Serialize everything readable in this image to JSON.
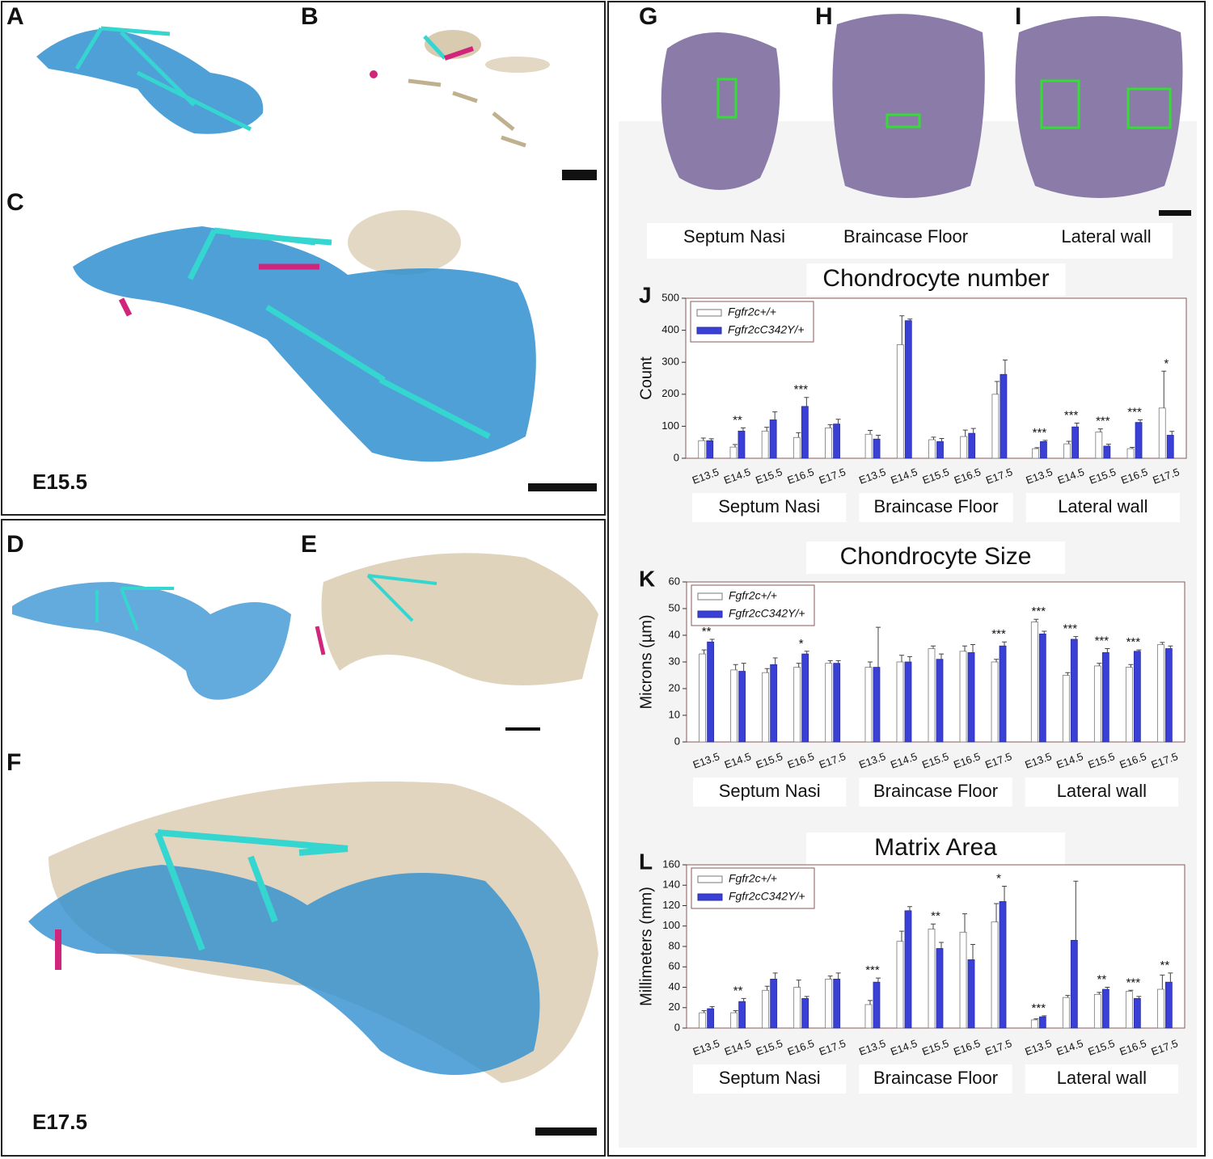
{
  "left_panels": [
    {
      "label": "A"
    },
    {
      "label": "B"
    },
    {
      "label": "C",
      "stage": "E15.5"
    },
    {
      "label": "D"
    },
    {
      "label": "E"
    },
    {
      "label": "F",
      "stage": "E17.5"
    }
  ],
  "histology": [
    {
      "label": "G",
      "caption": "Septum Nasi"
    },
    {
      "label": "H",
      "caption": "Braincase Floor"
    },
    {
      "label": "I",
      "caption": "Lateral wall"
    }
  ],
  "chart_data": [
    {
      "type": "bar",
      "panel_label": "J",
      "title": "Chondrocyte number",
      "y_label": "Count",
      "categories": [
        "E13.5",
        "E14.5",
        "E15.5",
        "E16.5",
        "E17.5",
        "E13.5",
        "E14.5",
        "E15.5",
        "E16.5",
        "E17.5",
        "E13.5",
        "E14.5",
        "E15.5",
        "E16.5",
        "E17.5"
      ],
      "groups": [
        "Septum Nasi",
        "Braincase Floor",
        "Lateral wall"
      ],
      "series": [
        {
          "name": "Fgfr2c+/+",
          "color": "#ffffff",
          "values": [
            55,
            35,
            85,
            65,
            95,
            75,
            355,
            58,
            68,
            200,
            30,
            45,
            82,
            30,
            157
          ],
          "errors": [
            8,
            8,
            12,
            15,
            10,
            12,
            90,
            8,
            20,
            40,
            3,
            8,
            10,
            4,
            115
          ]
        },
        {
          "name": "Fgfr2cC342Y/+",
          "color": "#3a3fd6",
          "values": [
            55,
            85,
            120,
            162,
            107,
            60,
            430,
            52,
            78,
            262,
            52,
            98,
            38,
            112,
            72
          ],
          "errors": [
            6,
            10,
            25,
            28,
            15,
            12,
            5,
            10,
            15,
            45,
            4,
            12,
            6,
            8,
            12
          ]
        }
      ],
      "significance": [
        null,
        "**",
        null,
        "***",
        null,
        null,
        null,
        null,
        null,
        null,
        "***",
        "***",
        "***",
        "***",
        "*"
      ],
      "ylim": [
        0,
        500
      ],
      "yticks": [
        0,
        100,
        200,
        300,
        400,
        500
      ],
      "legend": "upper left"
    },
    {
      "type": "bar",
      "panel_label": "K",
      "title": "Chondrocyte Size",
      "y_label": "Microns (µm)",
      "categories": [
        "E13.5",
        "E14.5",
        "E15.5",
        "E16.5",
        "E17.5",
        "E13.5",
        "E14.5",
        "E15.5",
        "E16.5",
        "E17.5",
        "E13.5",
        "E14.5",
        "E15.5",
        "E16.5",
        "E17.5"
      ],
      "groups": [
        "Septum Nasi",
        "Braincase Floor",
        "Lateral wall"
      ],
      "series": [
        {
          "name": "Fgfr2c+/+",
          "color": "#ffffff",
          "values": [
            33,
            27,
            26,
            28,
            29.5,
            28,
            30,
            35,
            34,
            30,
            45,
            25,
            28.5,
            28,
            36.5
          ],
          "errors": [
            1.5,
            2,
            1.5,
            1.5,
            1,
            2,
            2.5,
            1,
            2,
            1,
            1,
            1,
            1,
            1,
            0.8
          ]
        },
        {
          "name": "Fgfr2cC342Y/+",
          "color": "#3a3fd6",
          "values": [
            37.5,
            26.5,
            29,
            33,
            29.5,
            28,
            30,
            31,
            33.5,
            36,
            40.5,
            38.5,
            33.5,
            34,
            35
          ],
          "errors": [
            1,
            3,
            2.5,
            1,
            1,
            15,
            2,
            2,
            3,
            1.5,
            1,
            1,
            1.5,
            0.5,
            1
          ]
        }
      ],
      "significance": [
        "**",
        null,
        null,
        "*",
        null,
        null,
        null,
        null,
        null,
        "***",
        "***",
        "***",
        "***",
        "***",
        null
      ],
      "ylim": [
        0,
        60
      ],
      "yticks": [
        0,
        10,
        20,
        30,
        40,
        50,
        60
      ],
      "legend": "upper left"
    },
    {
      "type": "bar",
      "panel_label": "L",
      "title": "Matrix Area",
      "y_label": "Millimeters (mm)",
      "categories": [
        "E13.5",
        "E14.5",
        "E15.5",
        "E16.5",
        "E17.5",
        "E13.5",
        "E14.5",
        "E15.5",
        "E16.5",
        "E17.5",
        "E13.5",
        "E14.5",
        "E15.5",
        "E16.5",
        "E17.5"
      ],
      "groups": [
        "Septum Nasi",
        "Braincase Floor",
        "Lateral wall"
      ],
      "series": [
        {
          "name": "Fgfr2c+/+",
          "color": "#ffffff",
          "values": [
            15,
            15,
            37,
            40,
            48,
            23,
            85,
            97,
            94,
            104,
            8,
            30,
            33,
            36,
            38
          ],
          "errors": [
            2,
            2,
            4,
            7,
            3,
            4,
            10,
            5,
            18,
            18,
            1,
            2,
            2,
            1,
            14
          ]
        },
        {
          "name": "Fgfr2cC342Y/+",
          "color": "#3a3fd6",
          "values": [
            19,
            26,
            48,
            29,
            48,
            45,
            115,
            78,
            67,
            124,
            11,
            86,
            38,
            29,
            45
          ],
          "errors": [
            2,
            3,
            6,
            2,
            6,
            4,
            4,
            6,
            15,
            15,
            1,
            58,
            2,
            2,
            9
          ]
        }
      ],
      "significance": [
        null,
        "**",
        null,
        null,
        null,
        "***",
        null,
        "**",
        null,
        "*",
        "***",
        null,
        "**",
        "***",
        "**"
      ],
      "ylim": [
        0,
        160
      ],
      "yticks": [
        0,
        20,
        40,
        60,
        80,
        100,
        120,
        140,
        160
      ],
      "legend": "upper left"
    }
  ]
}
